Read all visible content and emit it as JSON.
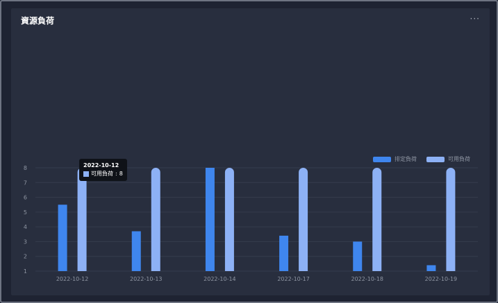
{
  "panel": {
    "title": "資源負荷",
    "menu_label": "···"
  },
  "colors": {
    "scheduled": "#3f86ee",
    "available": "#8db1f5",
    "grid": "#353c4d",
    "axis_text": "#8f96a3"
  },
  "tooltip": {
    "title": "2022-10-12",
    "series": "可用負荷",
    "value": 8
  },
  "chart_data": {
    "type": "bar",
    "categories": [
      "2022-10-12",
      "2022-10-13",
      "2022-10-14",
      "2022-10-17",
      "2022-10-18",
      "2022-10-19"
    ],
    "series": [
      {
        "name": "排定負荷",
        "values": [
          5.5,
          3.7,
          8,
          3.4,
          3.0,
          1.4
        ]
      },
      {
        "name": "可用負荷",
        "values": [
          8,
          8,
          8,
          8,
          8,
          8
        ]
      }
    ],
    "yticks": [
      1,
      2,
      3,
      4,
      5,
      6,
      7,
      8
    ],
    "ylim": [
      1,
      8
    ],
    "grid": true,
    "legend": "top-right"
  }
}
